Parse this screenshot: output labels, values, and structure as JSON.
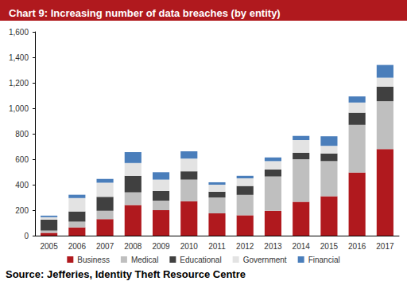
{
  "chart_data": {
    "type": "bar",
    "title": "Chart 9: Increasing number of data breaches (by entity)",
    "annotations": [
      "Source: Jefferies, Identity Theft Resource Centre"
    ],
    "categories": [
      "2005",
      "2006",
      "2007",
      "2008",
      "2009",
      "2010",
      "2011",
      "2012",
      "2013",
      "2014",
      "2015",
      "2016",
      "2017"
    ],
    "series": [
      {
        "name": "Business",
        "color": "#b0191e",
        "values": [
          22,
          65,
          130,
          240,
          200,
          270,
          175,
          160,
          195,
          265,
          310,
          495,
          680
        ]
      },
      {
        "name": "Medical",
        "color": "#bfbfbf",
        "values": [
          18,
          45,
          65,
          100,
          75,
          170,
          125,
          160,
          270,
          335,
          275,
          375,
          375
        ]
      },
      {
        "name": "Educational",
        "color": "#404040",
        "values": [
          85,
          80,
          110,
          130,
          75,
          65,
          45,
          70,
          55,
          50,
          60,
          95,
          115
        ]
      },
      {
        "name": "Government",
        "color": "#e3e3e3",
        "values": [
          20,
          105,
          110,
          100,
          90,
          100,
          55,
          60,
          65,
          100,
          60,
          80,
          70
        ]
      },
      {
        "name": "Financial",
        "color": "#4a7ebb",
        "values": [
          12,
          26,
          31,
          86,
          58,
          57,
          19,
          20,
          29,
          33,
          75,
          48,
          100
        ]
      }
    ],
    "stacked": true,
    "ylim": [
      0,
      1600
    ],
    "yticks": [
      0,
      200,
      400,
      600,
      800,
      {
        "value": 1000,
        "label": "1,000"
      },
      {
        "value": 1200,
        "label": "1,200"
      },
      {
        "value": 1400,
        "label": "1,400"
      },
      {
        "value": 1600,
        "label": "1,600"
      }
    ],
    "grid": false,
    "legend": "bottom"
  }
}
